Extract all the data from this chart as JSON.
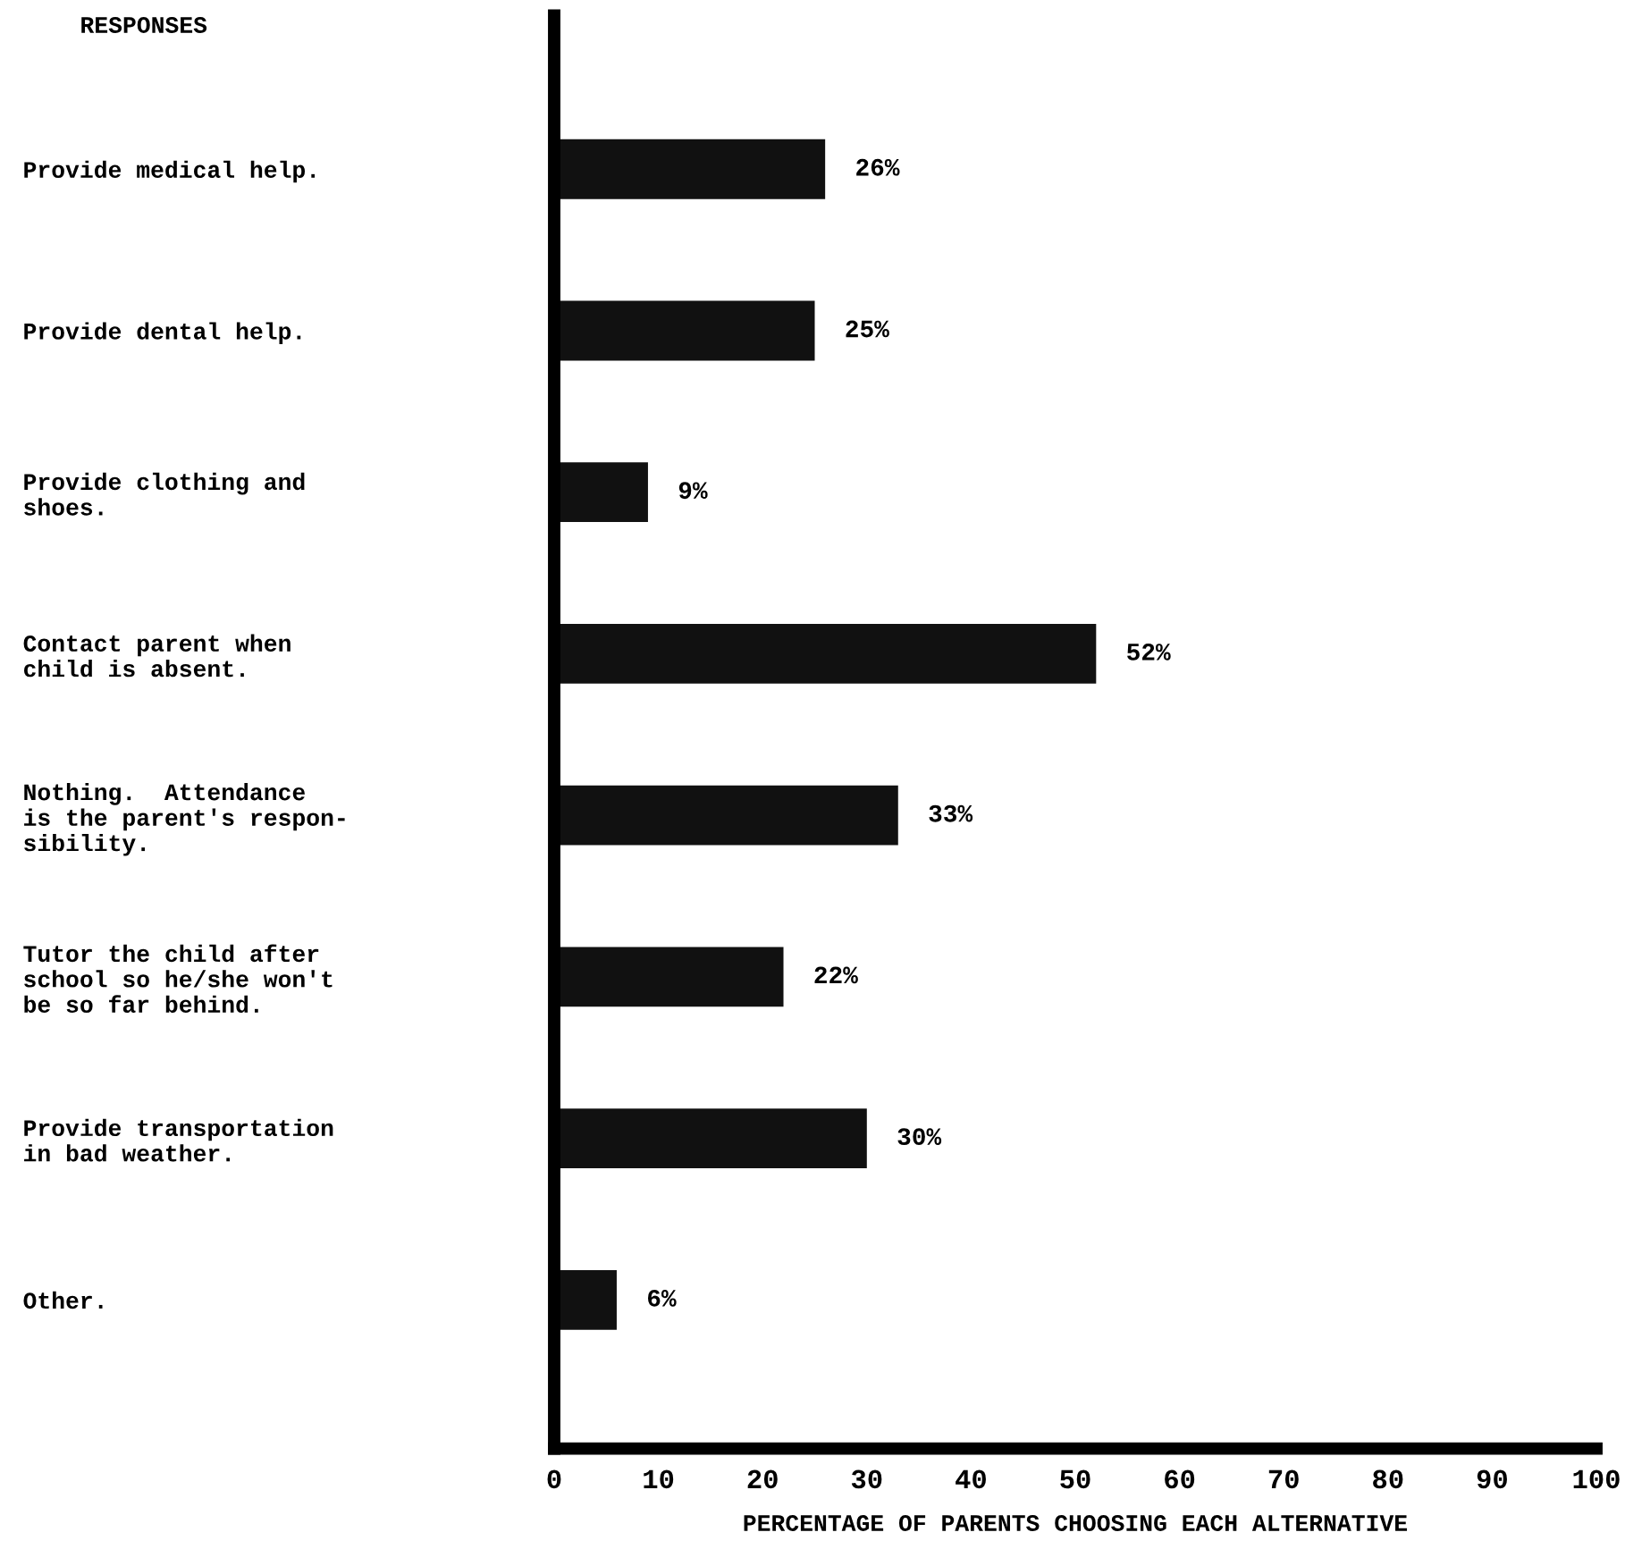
{
  "chart_data": {
    "type": "bar",
    "orientation": "horizontal",
    "ylabel": "RESPONSES",
    "xlabel": "PERCENTAGE OF PARENTS CHOOSING EACH ALTERNATIVE",
    "categories": [
      "Provide medical help.",
      "Provide dental help.",
      "Provide clothing and\nshoes.",
      "Contact parent when\nchild is absent.",
      "Nothing.  Attendance\nis the parent's respon-\nsibility.",
      "Tutor the child after\nschool so he/she won't\nbe so far behind.",
      "Provide transportation\nin bad weather.",
      "Other."
    ],
    "values": [
      26,
      25,
      9,
      52,
      33,
      22,
      30,
      6
    ],
    "value_labels": [
      "26%",
      "25%",
      "9%",
      "52%",
      "33%",
      "22%",
      "30%",
      "6%"
    ],
    "color": "#111111",
    "xlim": [
      0,
      100
    ],
    "xticks": [
      0,
      10,
      20,
      30,
      40,
      50,
      60,
      70,
      80,
      90,
      100
    ],
    "grid": false,
    "legend": false
  }
}
